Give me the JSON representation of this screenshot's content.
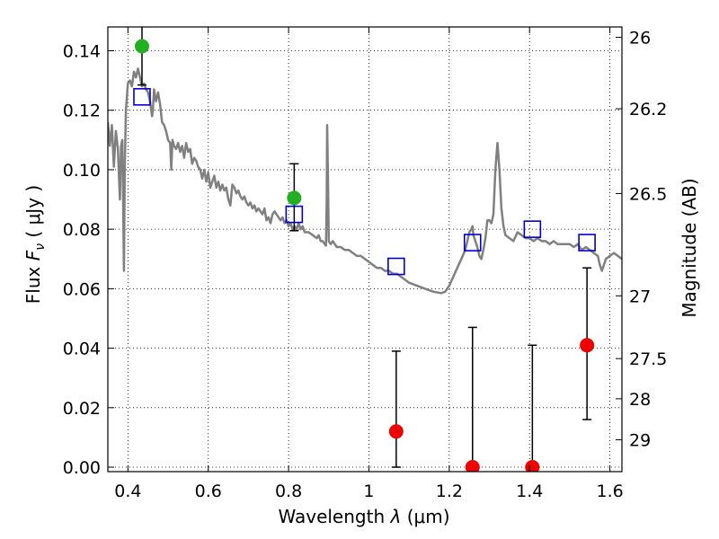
{
  "chart_data": {
    "type": "scatter",
    "xlabel_prefix": "Wavelength",
    "xlabel_symbol": "λ",
    "xlabel_unit": "(μm)",
    "ylabel_prefix": "Flux",
    "ylabel_symbol": "F",
    "ylabel_subscript": "ν",
    "ylabel_unit": "( μJy )",
    "y2label": "Magnitude (AB)",
    "xlim": [
      0.35,
      1.63
    ],
    "ylim": [
      -0.0015,
      0.148
    ],
    "grid": true,
    "x_ticks": [
      {
        "value": 0.4,
        "label": "0.4"
      },
      {
        "value": 0.6,
        "label": "0.6"
      },
      {
        "value": 0.8,
        "label": "0.8"
      },
      {
        "value": 1.0,
        "label": "1"
      },
      {
        "value": 1.2,
        "label": "1.2"
      },
      {
        "value": 1.4,
        "label": "1.4"
      },
      {
        "value": 1.6,
        "label": "1.6"
      }
    ],
    "y_ticks": [
      {
        "value": 0.0,
        "label": "0.00"
      },
      {
        "value": 0.02,
        "label": "0.02"
      },
      {
        "value": 0.04,
        "label": "0.04"
      },
      {
        "value": 0.06,
        "label": "0.06"
      },
      {
        "value": 0.08,
        "label": "0.08"
      },
      {
        "value": 0.1,
        "label": "0.10"
      },
      {
        "value": 0.12,
        "label": "0.12"
      },
      {
        "value": 0.14,
        "label": "0.14"
      }
    ],
    "y2_ticks": [
      {
        "flux": 0.1445,
        "label": "26"
      },
      {
        "flux": 0.1205,
        "label": "26.2"
      },
      {
        "flux": 0.092,
        "label": "26.5"
      },
      {
        "flux": 0.0576,
        "label": "27"
      },
      {
        "flux": 0.0365,
        "label": "27.5"
      },
      {
        "flux": 0.023,
        "label": "28"
      },
      {
        "flux": 0.0092,
        "label": "29"
      }
    ],
    "model_color": "#808080",
    "model_spectrum": [
      [
        0.35,
        0.116
      ],
      [
        0.355,
        0.108
      ],
      [
        0.36,
        0.115
      ],
      [
        0.365,
        0.101
      ],
      [
        0.37,
        0.113
      ],
      [
        0.375,
        0.107
      ],
      [
        0.38,
        0.09
      ],
      [
        0.383,
        0.108
      ],
      [
        0.386,
        0.11
      ],
      [
        0.388,
        0.09
      ],
      [
        0.39,
        0.066
      ],
      [
        0.392,
        0.1
      ],
      [
        0.395,
        0.12
      ],
      [
        0.4,
        0.129
      ],
      [
        0.405,
        0.13
      ],
      [
        0.41,
        0.128
      ],
      [
        0.415,
        0.133
      ],
      [
        0.42,
        0.131
      ],
      [
        0.425,
        0.134
      ],
      [
        0.43,
        0.131
      ],
      [
        0.435,
        0.128
      ],
      [
        0.44,
        0.129
      ],
      [
        0.445,
        0.127
      ],
      [
        0.45,
        0.126
      ],
      [
        0.455,
        0.123
      ],
      [
        0.458,
        0.12
      ],
      [
        0.46,
        0.118
      ],
      [
        0.462,
        0.12
      ],
      [
        0.465,
        0.127
      ],
      [
        0.47,
        0.123
      ],
      [
        0.475,
        0.126
      ],
      [
        0.48,
        0.122
      ],
      [
        0.485,
        0.116
      ],
      [
        0.49,
        0.115
      ],
      [
        0.495,
        0.113
      ],
      [
        0.5,
        0.11
      ],
      [
        0.505,
        0.109
      ],
      [
        0.508,
        0.1
      ],
      [
        0.511,
        0.11
      ],
      [
        0.515,
        0.108
      ],
      [
        0.52,
        0.107
      ],
      [
        0.525,
        0.109
      ],
      [
        0.53,
        0.106
      ],
      [
        0.535,
        0.108
      ],
      [
        0.54,
        0.104
      ],
      [
        0.545,
        0.109
      ],
      [
        0.55,
        0.106
      ],
      [
        0.555,
        0.107
      ],
      [
        0.56,
        0.102
      ],
      [
        0.565,
        0.104
      ],
      [
        0.57,
        0.103
      ],
      [
        0.575,
        0.101
      ],
      [
        0.58,
        0.1
      ],
      [
        0.585,
        0.097
      ],
      [
        0.59,
        0.1
      ],
      [
        0.595,
        0.096
      ],
      [
        0.6,
        0.099
      ],
      [
        0.605,
        0.094
      ],
      [
        0.61,
        0.096
      ],
      [
        0.615,
        0.098
      ],
      [
        0.62,
        0.094
      ],
      [
        0.625,
        0.096
      ],
      [
        0.63,
        0.093
      ],
      [
        0.635,
        0.095
      ],
      [
        0.64,
        0.093
      ],
      [
        0.645,
        0.094
      ],
      [
        0.65,
        0.09
      ],
      [
        0.655,
        0.088
      ],
      [
        0.66,
        0.095
      ],
      [
        0.665,
        0.094
      ],
      [
        0.67,
        0.092
      ],
      [
        0.675,
        0.093
      ],
      [
        0.68,
        0.091
      ],
      [
        0.685,
        0.09
      ],
      [
        0.69,
        0.091
      ],
      [
        0.695,
        0.089
      ],
      [
        0.7,
        0.088
      ],
      [
        0.705,
        0.089
      ],
      [
        0.71,
        0.087
      ],
      [
        0.715,
        0.088
      ],
      [
        0.72,
        0.086
      ],
      [
        0.725,
        0.087
      ],
      [
        0.73,
        0.086
      ],
      [
        0.735,
        0.085
      ],
      [
        0.74,
        0.087
      ],
      [
        0.745,
        0.083
      ],
      [
        0.75,
        0.084
      ],
      [
        0.755,
        0.082
      ],
      [
        0.76,
        0.085
      ],
      [
        0.765,
        0.086
      ],
      [
        0.77,
        0.085
      ],
      [
        0.775,
        0.084
      ],
      [
        0.78,
        0.083
      ],
      [
        0.785,
        0.084
      ],
      [
        0.79,
        0.082
      ],
      [
        0.795,
        0.083
      ],
      [
        0.8,
        0.081
      ],
      [
        0.805,
        0.082
      ],
      [
        0.81,
        0.08
      ],
      [
        0.815,
        0.081
      ],
      [
        0.82,
        0.08
      ],
      [
        0.825,
        0.082
      ],
      [
        0.83,
        0.08
      ],
      [
        0.835,
        0.081
      ],
      [
        0.84,
        0.079
      ],
      [
        0.85,
        0.079
      ],
      [
        0.86,
        0.078
      ],
      [
        0.87,
        0.077
      ],
      [
        0.875,
        0.078
      ],
      [
        0.88,
        0.076
      ],
      [
        0.885,
        0.076
      ],
      [
        0.89,
        0.075
      ],
      [
        0.893,
        0.0745
      ],
      [
        0.895,
        0.09
      ],
      [
        0.896,
        0.115
      ],
      [
        0.898,
        0.098
      ],
      [
        0.9,
        0.076
      ],
      [
        0.905,
        0.075
      ],
      [
        0.91,
        0.076
      ],
      [
        0.92,
        0.074
      ],
      [
        0.93,
        0.074
      ],
      [
        0.94,
        0.073
      ],
      [
        0.95,
        0.073
      ],
      [
        0.96,
        0.072
      ],
      [
        0.97,
        0.071
      ],
      [
        0.98,
        0.071
      ],
      [
        0.99,
        0.07
      ],
      [
        1.0,
        0.069
      ],
      [
        1.01,
        0.068
      ],
      [
        1.02,
        0.067
      ],
      [
        1.03,
        0.067
      ],
      [
        1.04,
        0.066
      ],
      [
        1.05,
        0.066
      ],
      [
        1.06,
        0.065
      ],
      [
        1.07,
        0.065
      ],
      [
        1.08,
        0.064
      ],
      [
        1.09,
        0.063
      ],
      [
        1.1,
        0.062
      ],
      [
        1.12,
        0.061
      ],
      [
        1.14,
        0.06
      ],
      [
        1.16,
        0.059
      ],
      [
        1.18,
        0.0585
      ],
      [
        1.19,
        0.059
      ],
      [
        1.2,
        0.061
      ],
      [
        1.21,
        0.064
      ],
      [
        1.22,
        0.067
      ],
      [
        1.23,
        0.07
      ],
      [
        1.24,
        0.073
      ],
      [
        1.245,
        0.076
      ],
      [
        1.25,
        0.079
      ],
      [
        1.255,
        0.08
      ],
      [
        1.258,
        0.081
      ],
      [
        1.26,
        0.078
      ],
      [
        1.265,
        0.076
      ],
      [
        1.27,
        0.074
      ],
      [
        1.275,
        0.071
      ],
      [
        1.28,
        0.07
      ],
      [
        1.285,
        0.073
      ],
      [
        1.29,
        0.077
      ],
      [
        1.295,
        0.083
      ],
      [
        1.3,
        0.083
      ],
      [
        1.305,
        0.082
      ],
      [
        1.31,
        0.085
      ],
      [
        1.315,
        0.1
      ],
      [
        1.32,
        0.109
      ],
      [
        1.325,
        0.1
      ],
      [
        1.33,
        0.087
      ],
      [
        1.335,
        0.081
      ],
      [
        1.34,
        0.078
      ],
      [
        1.35,
        0.077
      ],
      [
        1.36,
        0.076
      ],
      [
        1.37,
        0.079
      ],
      [
        1.38,
        0.078
      ],
      [
        1.39,
        0.077
      ],
      [
        1.4,
        0.077
      ],
      [
        1.41,
        0.076
      ],
      [
        1.42,
        0.077
      ],
      [
        1.43,
        0.076
      ],
      [
        1.44,
        0.076
      ],
      [
        1.45,
        0.075
      ],
      [
        1.46,
        0.076
      ],
      [
        1.47,
        0.075
      ],
      [
        1.48,
        0.075
      ],
      [
        1.49,
        0.075
      ],
      [
        1.5,
        0.075
      ],
      [
        1.51,
        0.074
      ],
      [
        1.52,
        0.075
      ],
      [
        1.53,
        0.073
      ],
      [
        1.54,
        0.074
      ],
      [
        1.55,
        0.073
      ],
      [
        1.56,
        0.072
      ],
      [
        1.57,
        0.071
      ],
      [
        1.575,
        0.068
      ],
      [
        1.58,
        0.066
      ],
      [
        1.585,
        0.068
      ],
      [
        1.59,
        0.07
      ],
      [
        1.6,
        0.071
      ],
      [
        1.61,
        0.072
      ],
      [
        1.62,
        0.071
      ],
      [
        1.63,
        0.07
      ]
    ],
    "model_photometry": {
      "marker": "open-square",
      "color": "#0000cc",
      "x": [
        0.435,
        0.814,
        1.068,
        1.258,
        1.407,
        1.543
      ],
      "y": [
        0.1245,
        0.085,
        0.0675,
        0.0755,
        0.08,
        0.0755
      ]
    },
    "observed_detections": {
      "marker": "filled-circle",
      "color": "#22b022",
      "x": [
        0.435,
        0.814
      ],
      "y": [
        0.1415,
        0.0905
      ],
      "err_low": [
        0.1285,
        0.0795
      ],
      "err_high": [
        0.15,
        0.102
      ]
    },
    "observed_nondetections": {
      "marker": "filled-circle",
      "color": "#ee0000",
      "x": [
        1.068,
        1.258,
        1.407,
        1.543
      ],
      "y": [
        0.012,
        0.0,
        0.0,
        0.041
      ],
      "err_low": [
        0.0,
        0.0,
        0.0,
        0.016
      ],
      "err_high": [
        0.039,
        0.047,
        0.041,
        0.067
      ]
    }
  }
}
